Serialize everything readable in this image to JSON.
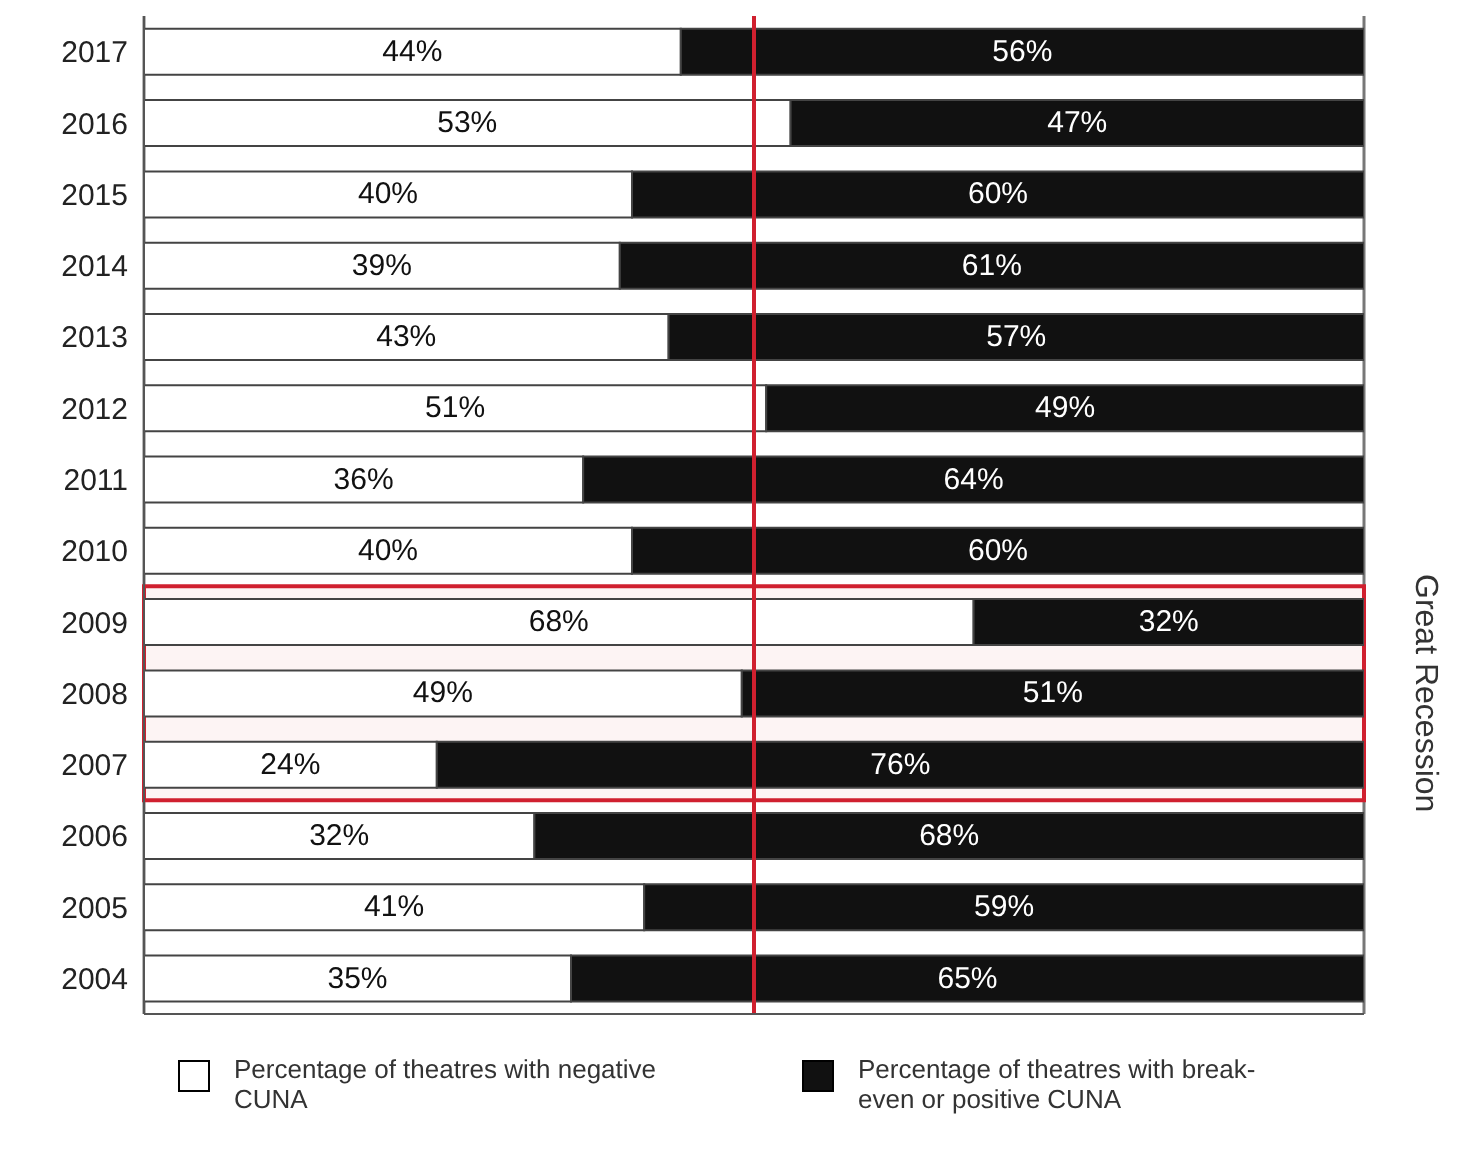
{
  "chart_data": {
    "type": "bar",
    "orientation": "horizontal",
    "stacked": true,
    "categories": [
      "2017",
      "2016",
      "2015",
      "2014",
      "2013",
      "2012",
      "2011",
      "2010",
      "2009",
      "2008",
      "2007",
      "2006",
      "2005",
      "2004"
    ],
    "series": [
      {
        "name": "Percentage of theatres with negative CUNA",
        "color": "#ffffff",
        "values": [
          44,
          53,
          40,
          39,
          43,
          51,
          36,
          40,
          68,
          49,
          24,
          32,
          41,
          35
        ],
        "value_labels": [
          "44%",
          "53%",
          "40%",
          "39%",
          "43%",
          "51%",
          "36%",
          "40%",
          "68%",
          "49%",
          "24%",
          "32%",
          "41%",
          "35%"
        ]
      },
      {
        "name": "Percentage of theatres with break-even or positive CUNA",
        "color": "#111111",
        "values": [
          56,
          47,
          60,
          61,
          57,
          49,
          64,
          60,
          32,
          51,
          76,
          68,
          59,
          65
        ],
        "value_labels": [
          "56%",
          "47%",
          "60%",
          "61%",
          "57%",
          "49%",
          "64%",
          "60%",
          "32%",
          "51%",
          "76%",
          "68%",
          "59%",
          "65%"
        ]
      }
    ],
    "xlim": [
      0,
      100
    ],
    "tick_labels": "y",
    "grid": "x",
    "legend": "bottom",
    "ref_lines": [
      {
        "axis": "x",
        "value": 50,
        "color": "#d0202f"
      }
    ],
    "bands": [
      {
        "axis": "y",
        "from": "2009",
        "to": "2007",
        "label": "Great Recession",
        "color": "#d0202f"
      }
    ]
  }
}
